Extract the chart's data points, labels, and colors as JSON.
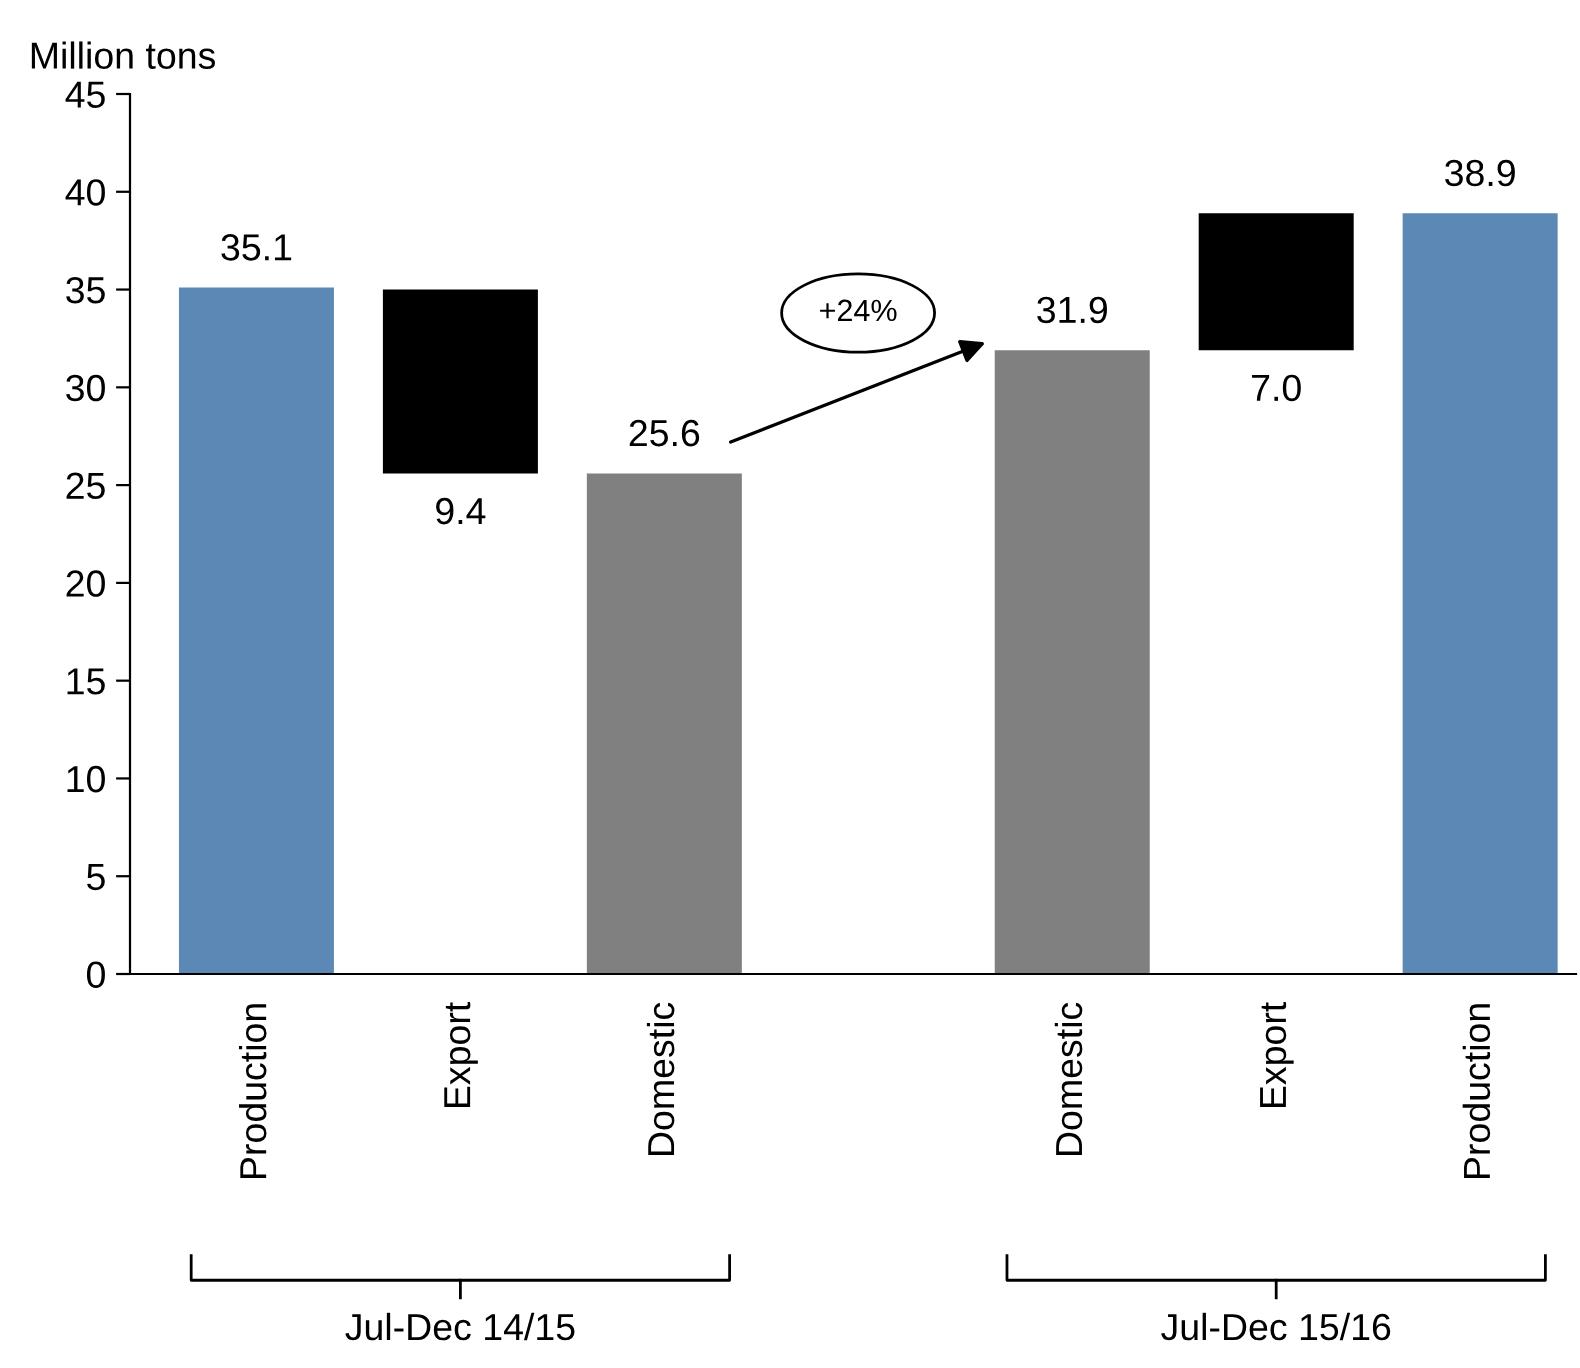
{
  "chart_data": {
    "type": "bar",
    "ylabel": "Million tons",
    "categories": [
      "Production",
      "Export",
      "Domestic",
      null,
      "Domestic",
      "Export",
      "Production"
    ],
    "values": [
      35.1,
      9.4,
      25.6,
      null,
      31.9,
      7.0,
      38.9
    ],
    "base": [
      0,
      25.6,
      0,
      null,
      0,
      31.9,
      0
    ],
    "colors": [
      "#5b88b5",
      "#000000",
      "#808080",
      null,
      "#808080",
      "#000000",
      "#5b88b5"
    ],
    "value_labels": [
      "35.1",
      "9.4",
      "25.6",
      null,
      "31.9",
      "7.0",
      "38.9"
    ],
    "ylim": [
      0,
      45
    ],
    "yticks": [
      0,
      5,
      10,
      15,
      20,
      25,
      30,
      35,
      40,
      45
    ],
    "grid": false,
    "legend": false,
    "annotations": [
      "+24%",
      "Jul-Dec 14/15",
      "Jul-Dec 15/16"
    ]
  }
}
